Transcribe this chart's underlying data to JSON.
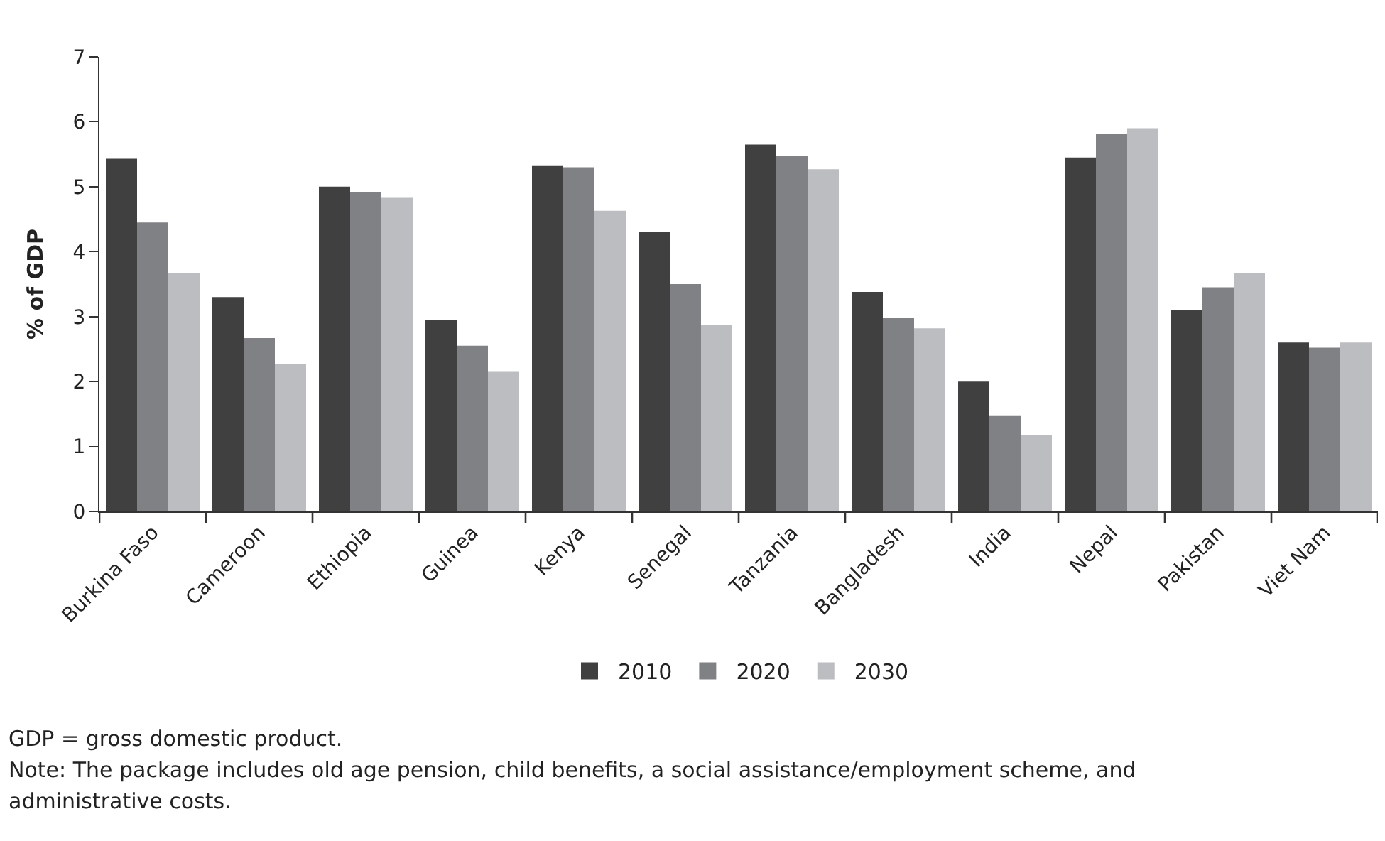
{
  "chart_data": {
    "type": "bar",
    "ylabel": "% of GDP",
    "categories": [
      "Burkina Faso",
      "Cameroon",
      "Ethiopia",
      "Guinea",
      "Kenya",
      "Senegal",
      "Tanzania",
      "Bangladesh",
      "India",
      "Nepal",
      "Pakistan",
      "Viet Nam"
    ],
    "series": [
      {
        "name": "2010",
        "color": "#404040",
        "values": [
          5.43,
          3.3,
          5.0,
          2.95,
          5.33,
          4.3,
          5.65,
          3.38,
          2.0,
          5.45,
          3.1,
          2.6
        ]
      },
      {
        "name": "2020",
        "color": "#808184",
        "values": [
          4.45,
          2.67,
          4.92,
          2.55,
          5.3,
          3.5,
          5.47,
          2.98,
          1.48,
          5.82,
          3.45,
          2.52
        ]
      },
      {
        "name": "2030",
        "color": "#bcbdc0",
        "values": [
          3.67,
          2.27,
          4.83,
          2.15,
          4.63,
          2.87,
          5.27,
          2.82,
          1.17,
          5.9,
          3.67,
          2.6
        ]
      }
    ],
    "ylim": [
      0,
      7
    ],
    "yticks": [
      0,
      1,
      2,
      3,
      4,
      5,
      6,
      7
    ],
    "grid": false,
    "legend": "bottom",
    "annotations": [
      "GDP = gross domestic product.",
      "Note: The package includes old age pension, child benefits, a social assistance/employment scheme, and administrative costs."
    ]
  }
}
